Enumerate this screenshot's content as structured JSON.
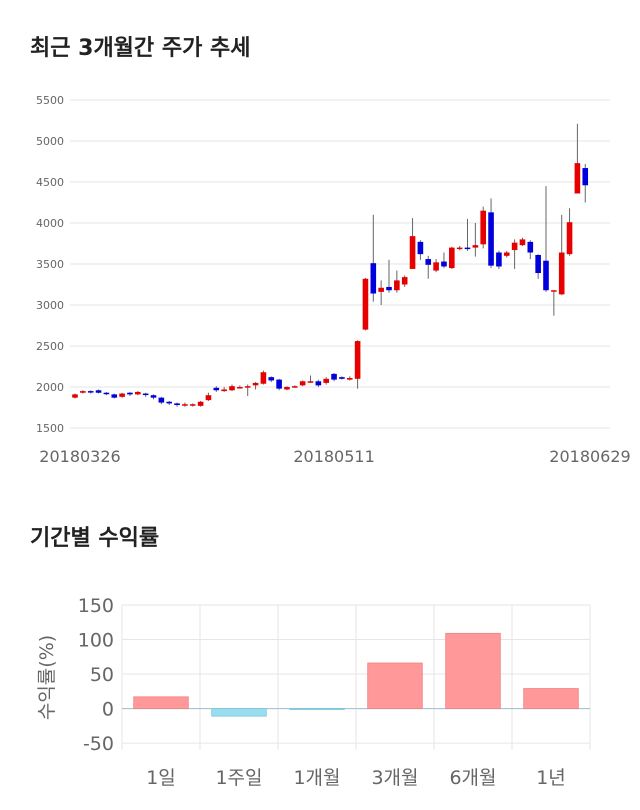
{
  "titles": {
    "price_trend": "최근 3개월간 주가 추세",
    "returns": "기간별 수익률"
  },
  "colors": {
    "up": "#e60000",
    "down": "#0000dd",
    "bar_positive": "#ff9999",
    "bar_negative": "#99ddee",
    "grid": "#e6e6e6"
  },
  "chart_data": [
    {
      "type": "candlestick",
      "ylim": [
        1500,
        5500
      ],
      "yticks": [
        1500,
        2000,
        2500,
        3000,
        3500,
        4000,
        4500,
        5000,
        5500
      ],
      "xtick_labels": [
        {
          "index": 0,
          "label": "20180326"
        },
        {
          "index": 33,
          "label": "20180511"
        },
        {
          "index": 65,
          "label": "20180629"
        }
      ],
      "grid": true,
      "candles": [
        [
          1870,
          1910,
          1860,
          1920
        ],
        [
          1930,
          1950,
          1920,
          1960
        ],
        [
          1950,
          1940,
          1920,
          1960
        ],
        [
          1960,
          1930,
          1920,
          1970
        ],
        [
          1930,
          1920,
          1900,
          1940
        ],
        [
          1910,
          1870,
          1860,
          1920
        ],
        [
          1880,
          1920,
          1870,
          1930
        ],
        [
          1930,
          1910,
          1890,
          1940
        ],
        [
          1910,
          1940,
          1900,
          1950
        ],
        [
          1920,
          1910,
          1880,
          1930
        ],
        [
          1900,
          1870,
          1850,
          1910
        ],
        [
          1870,
          1810,
          1790,
          1880
        ],
        [
          1820,
          1800,
          1780,
          1830
        ],
        [
          1800,
          1780,
          1760,
          1810
        ],
        [
          1780,
          1790,
          1760,
          1810
        ],
        [
          1780,
          1790,
          1760,
          1800
        ],
        [
          1770,
          1820,
          1760,
          1830
        ],
        [
          1840,
          1900,
          1830,
          1930
        ],
        [
          1990,
          1960,
          1940,
          2010
        ],
        [
          1950,
          1970,
          1940,
          2000
        ],
        [
          1960,
          2010,
          1950,
          2030
        ],
        [
          1990,
          2000,
          1980,
          2020
        ],
        [
          2000,
          2010,
          1890,
          2030
        ],
        [
          2020,
          2050,
          1970,
          2060
        ],
        [
          2040,
          2180,
          2030,
          2200
        ],
        [
          2120,
          2080,
          2060,
          2130
        ],
        [
          2090,
          1980,
          1960,
          2100
        ],
        [
          1970,
          2000,
          1960,
          2010
        ],
        [
          2000,
          2010,
          1990,
          2020
        ],
        [
          2020,
          2070,
          2010,
          2080
        ],
        [
          2060,
          2070,
          2050,
          2140
        ],
        [
          2070,
          2020,
          2000,
          2090
        ],
        [
          2050,
          2100,
          2030,
          2120
        ],
        [
          2160,
          2090,
          2070,
          2170
        ],
        [
          2120,
          2100,
          2090,
          2130
        ],
        [
          2090,
          2110,
          2080,
          2130
        ],
        [
          2100,
          2560,
          1980,
          2570
        ],
        [
          2700,
          3320,
          2690,
          3330
        ],
        [
          3510,
          3140,
          3040,
          4100
        ],
        [
          3160,
          3210,
          3000,
          3300
        ],
        [
          3220,
          3180,
          3150,
          3550
        ],
        [
          3180,
          3300,
          3150,
          3420
        ],
        [
          3250,
          3340,
          3220,
          3360
        ],
        [
          3440,
          3840,
          3440,
          4060
        ],
        [
          3770,
          3620,
          3550,
          3790
        ],
        [
          3560,
          3490,
          3320,
          3600
        ],
        [
          3420,
          3520,
          3400,
          3560
        ],
        [
          3530,
          3470,
          3450,
          3640
        ],
        [
          3450,
          3700,
          3440,
          3710
        ],
        [
          3690,
          3700,
          3670,
          3720
        ],
        [
          3700,
          3690,
          3660,
          4050
        ],
        [
          3700,
          3730,
          3590,
          4000
        ],
        [
          3740,
          4150,
          3690,
          4200
        ],
        [
          4130,
          3480,
          3450,
          4300
        ],
        [
          3640,
          3470,
          3440,
          3660
        ],
        [
          3600,
          3640,
          3580,
          3660
        ],
        [
          3670,
          3760,
          3440,
          3800
        ],
        [
          3730,
          3800,
          3720,
          3820
        ],
        [
          3770,
          3640,
          3560,
          3790
        ],
        [
          3610,
          3390,
          3320,
          3620
        ],
        [
          3540,
          3180,
          3160,
          4450
        ],
        [
          3180,
          3180,
          2870,
          3180
        ],
        [
          3130,
          3640,
          3120,
          4100
        ],
        [
          3620,
          4010,
          3600,
          4180
        ],
        [
          4360,
          4730,
          4360,
          5210
        ],
        [
          4670,
          4460,
          4250,
          4720
        ]
      ]
    },
    {
      "type": "bar",
      "categories": [
        "1일",
        "1주일",
        "1개월",
        "3개월",
        "6개월",
        "1년"
      ],
      "values": [
        17,
        -11,
        -1,
        66,
        109,
        29
      ],
      "ylabel": "수익률(%)",
      "ylim": [
        -60,
        150
      ],
      "yticks": [
        -50,
        0,
        50,
        100,
        150
      ],
      "grid": true
    }
  ]
}
